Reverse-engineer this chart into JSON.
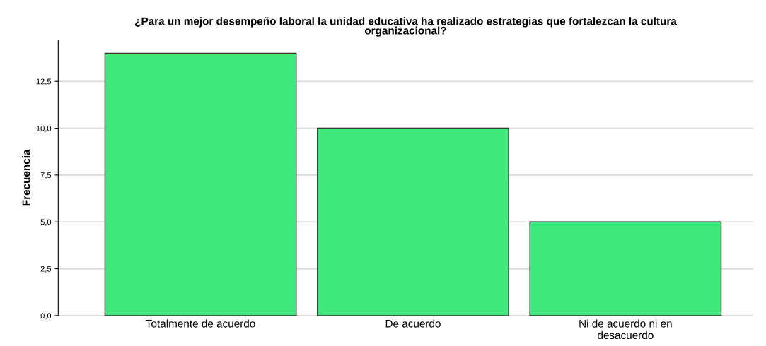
{
  "chart_data": {
    "type": "bar",
    "title": "¿Para un mejor desempeño laboral la unidad educativa ha realizado estrategias que fortalezcan la cultura\norganizacional?",
    "ylabel": "Frecuencia",
    "categories": [
      "Totalmente de acuerdo",
      "De acuerdo",
      "Ni de acuerdo ni en\ndesacuerdo"
    ],
    "values": [
      14,
      10,
      5
    ],
    "color": "#40e87c",
    "ylim": [
      0,
      14.7
    ],
    "yticks": [
      {
        "value": 0,
        "label": "0,0"
      },
      {
        "value": 2.5,
        "label": "2,5"
      },
      {
        "value": 5,
        "label": "5,0"
      },
      {
        "value": 7.5,
        "label": "7,5"
      },
      {
        "value": 10,
        "label": "10,0"
      },
      {
        "value": 12.5,
        "label": "12,5"
      }
    ],
    "grid": "y"
  }
}
